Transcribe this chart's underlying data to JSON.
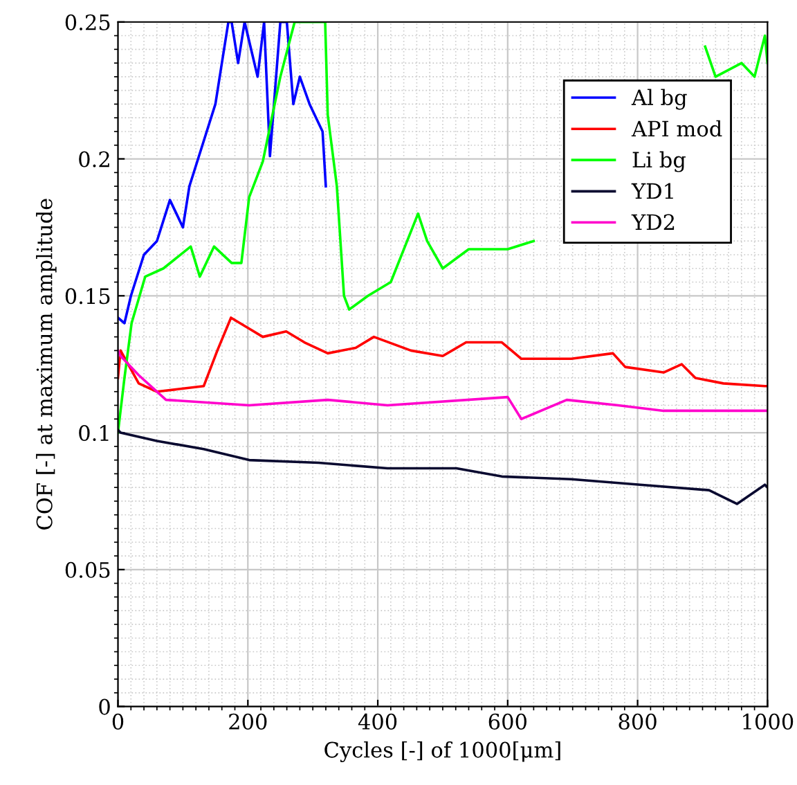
{
  "chart_data": {
    "type": "line",
    "xlabel": "Cycles [-] of 1000[μm]",
    "ylabel": "COF [-] at maximum amplitude",
    "xlim": [
      0,
      1000
    ],
    "ylim": [
      0,
      0.25
    ],
    "xticks": [
      0,
      200,
      400,
      600,
      800,
      1000
    ],
    "yticks": [
      0,
      0.05,
      0.1,
      0.15,
      0.2,
      0.25
    ],
    "grid": true,
    "legend": "top right",
    "series": [
      {
        "name": "Al bg",
        "color": "#0000ff",
        "x": [
          0,
          10,
          20,
          40,
          60,
          80,
          90,
          100,
          110,
          130,
          150,
          160,
          170,
          175,
          185,
          195,
          200,
          215,
          225,
          234,
          250,
          260,
          270,
          280,
          295,
          305,
          315,
          320
        ],
        "values": [
          0.142,
          0.14,
          0.15,
          0.165,
          0.17,
          0.185,
          0.18,
          0.175,
          0.19,
          0.205,
          0.22,
          0.235,
          0.25,
          0.25,
          0.235,
          0.25,
          0.245,
          0.23,
          0.25,
          0.201,
          0.25,
          0.25,
          0.22,
          0.23,
          0.22,
          0.215,
          0.21,
          0.19
        ]
      },
      {
        "name": "API mod",
        "color": "#ff0000",
        "x": [
          0,
          4,
          32,
          60,
          96,
          132,
          153,
          174,
          202,
          223,
          259,
          287,
          323,
          366,
          394,
          451,
          500,
          536,
          591,
          621,
          698,
          762,
          781,
          840,
          868,
          889,
          932,
          996,
          1000
        ],
        "values": [
          0.12,
          0.13,
          0.118,
          0.115,
          0.116,
          0.117,
          0.13,
          0.142,
          0.138,
          0.135,
          0.137,
          0.133,
          0.129,
          0.131,
          0.135,
          0.13,
          0.128,
          0.133,
          0.133,
          0.127,
          0.127,
          0.129,
          0.124,
          0.122,
          0.125,
          0.12,
          0.118,
          0.117,
          0.117
        ]
      },
      {
        "name": "Li bg",
        "color": "#00ff00",
        "x": [
          0,
          10,
          21,
          42,
          70,
          112,
          126,
          148,
          175,
          190,
          202,
          223,
          250,
          272,
          290,
          310,
          319,
          323,
          337,
          348,
          356,
          385,
          420,
          462,
          476,
          500,
          540,
          600,
          640,
          660,
          904,
          920,
          960,
          980,
          996,
          1000
        ],
        "values": [
          0.1,
          0.12,
          0.14,
          0.157,
          0.16,
          0.168,
          0.157,
          0.168,
          0.162,
          0.162,
          0.186,
          0.199,
          0.23,
          0.25,
          0.25,
          0.25,
          0.25,
          0.216,
          0.19,
          0.15,
          0.145,
          0.15,
          0.155,
          0.18,
          0.17,
          0.16,
          0.167,
          0.167,
          0.17,
          null,
          0.241,
          0.23,
          0.235,
          0.23,
          0.245,
          0.235
        ]
      },
      {
        "name": "YD1",
        "color": "#0a0a30",
        "x": [
          0,
          4,
          60,
          132,
          202,
          309,
          415,
          521,
          591,
          698,
          804,
          910,
          953,
          996,
          1000
        ],
        "values": [
          0.101,
          0.1,
          0.097,
          0.094,
          0.09,
          0.089,
          0.087,
          0.087,
          0.084,
          0.083,
          0.081,
          0.079,
          0.074,
          0.081,
          0.08
        ]
      },
      {
        "name": "YD2",
        "color": "#ff00cc",
        "x": [
          0,
          4,
          32,
          74,
          202,
          323,
          415,
          600,
          621,
          691,
          770,
          840,
          996,
          1000
        ],
        "values": [
          0.13,
          0.128,
          0.121,
          0.112,
          0.11,
          0.112,
          0.11,
          0.113,
          0.105,
          0.112,
          0.11,
          0.108,
          0.108,
          0.108
        ]
      }
    ]
  }
}
